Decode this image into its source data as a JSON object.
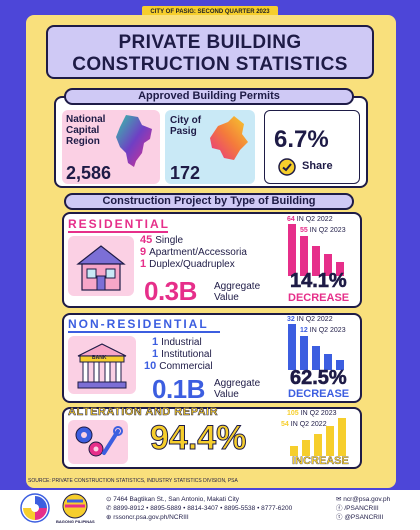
{
  "banner": "CITY OF PASIG: SECOND QUARTER 2023",
  "title": {
    "line1": "PRIVATE BUILDING",
    "line2": "CONSTRUCTION STATISTICS"
  },
  "permits": {
    "heading": "Approved Building Permits",
    "ncr": {
      "label_1": "National",
      "label_2": "Capital",
      "label_3": "Region",
      "value": "2,586"
    },
    "pasig": {
      "label_1": "City of",
      "label_2": "Pasig",
      "value": "172"
    },
    "share": {
      "value": "6.7%",
      "label": "Share"
    }
  },
  "construction_heading": "Construction Project by Type of Building",
  "residential": {
    "heading": "RESIDENTIAL",
    "items": [
      {
        "count": "45",
        "label": "Single"
      },
      {
        "count": "9",
        "label": "Apartment/Accessoria"
      },
      {
        "count": "1",
        "label": "Duplex/Quadruplex"
      }
    ],
    "aggregate": "0.3B",
    "aggregate_label_1": "Aggregate",
    "aggregate_label_2": "Value",
    "percent": "14.1%",
    "change": "DECREASE",
    "prev": {
      "value": "64",
      "label": "IN Q2 2022"
    },
    "curr": {
      "value": "55",
      "label": "IN Q2 2023"
    }
  },
  "nonresidential": {
    "heading": "NON-RESIDENTIAL",
    "items": [
      {
        "count": "1",
        "label": "Industrial"
      },
      {
        "count": "1",
        "label": "Institutional"
      },
      {
        "count": "10",
        "label": "Commercial"
      }
    ],
    "building_sign": "BANK",
    "aggregate": "0.1B",
    "aggregate_label_1": "Aggregate",
    "aggregate_label_2": "Value",
    "percent": "62.5%",
    "change": "DECREASE",
    "prev": {
      "value": "32",
      "label": "IN Q2 2022"
    },
    "curr": {
      "value": "12",
      "label": "IN Q2 2023"
    }
  },
  "alteration": {
    "heading": "ALTERATION AND REPAIR",
    "percent": "94.4%",
    "change": "INCREASE",
    "top": {
      "value": "105",
      "label": "IN Q2 2023"
    },
    "bottom": {
      "value": "54",
      "label": "IN Q2 2022"
    }
  },
  "source": "SOURCE: PRIVATE CONSTRUCTION STATISTICS, INDUSTRY STATISTICS DIVISION, PSA",
  "footer": {
    "address": "7464 Bagtikan St., San Antonio, Makati City",
    "phones": "8899-8912 • 8895-5889 • 8814-3407 • 8895-5538 • 8777-6200",
    "website": "rssoncr.psa.gov.ph/NCRIII",
    "email": "ncr@psa.gov.ph",
    "facebook": "/PSANCRIII",
    "twitter": "@PSANCRIII",
    "logo_text": "BAGONG PILIPINAS"
  },
  "colors": {
    "background": "#4d46d8",
    "card": "#f9e07c",
    "pink": "#e62f8a",
    "blue": "#3c5ee0",
    "yellow": "#f6ce2c",
    "navy": "#1e1b46"
  }
}
